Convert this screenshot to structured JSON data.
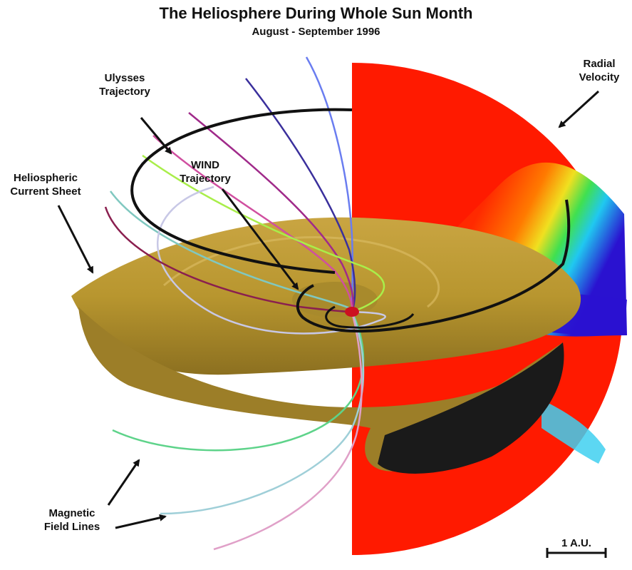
{
  "title": "The Heliosphere During Whole Sun Month",
  "subtitle": "August - September 1996",
  "labels": {
    "ulysses": [
      "Ulysses",
      "Trajectory"
    ],
    "wind": [
      "WIND",
      "Trajectory"
    ],
    "current_sheet": [
      "Heliospheric",
      "Current Sheet"
    ],
    "radial_velocity": [
      "Radial",
      "Velocity"
    ],
    "field_lines": [
      "Magnetic",
      "Field Lines"
    ]
  },
  "scale_bar": "1 A.U.",
  "colors": {
    "velocity_slow": "#ff1a00",
    "velocity_fast": "#2a12d0",
    "current_sheet": "#b8962f",
    "trajectory": "#111111",
    "sun": "#cc1020"
  },
  "field_line_colors": [
    "#6a7df0",
    "#3a2f9c",
    "#a02a8a",
    "#d04fa0",
    "#a9ee4a",
    "#80c8c0",
    "#c8c8e6",
    "#8a1f4f",
    "#5ed38a",
    "#9fcfd8",
    "#e0a0c8"
  ]
}
